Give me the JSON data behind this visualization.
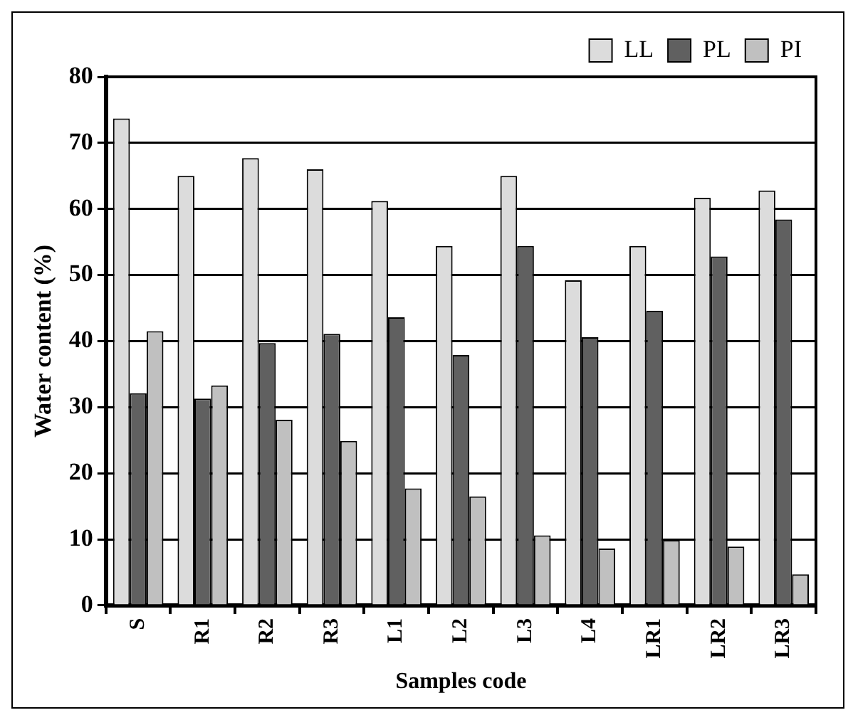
{
  "chart_data": {
    "type": "bar",
    "xlabel": "Samples code",
    "ylabel": "Water content (%)",
    "categories": [
      "S",
      "R1",
      "R2",
      "R3",
      "L1",
      "L2",
      "L3",
      "L4",
      "LR1",
      "LR2",
      "LR3"
    ],
    "series": [
      {
        "name": "LL",
        "color": "#dcdcdc",
        "values": [
          73.7,
          65,
          67.7,
          66,
          61.2,
          54.4,
          65,
          49.2,
          54.4,
          61.7,
          62.8
        ]
      },
      {
        "name": "PL",
        "color": "#606060",
        "values": [
          32.1,
          31.3,
          39.7,
          41.1,
          43.6,
          37.9,
          54.4,
          40.6,
          44.6,
          52.8,
          58.4
        ]
      },
      {
        "name": "PI",
        "color": "#c0c0c0",
        "values": [
          41.5,
          33.3,
          28.1,
          24.9,
          17.7,
          16.5,
          10.6,
          8.6,
          9.9,
          8.9,
          4.7
        ]
      }
    ],
    "ylim": [
      0,
      80
    ],
    "yticks": [
      0,
      10,
      20,
      30,
      40,
      50,
      60,
      70,
      80
    ],
    "grid": "y",
    "legend": "top right"
  }
}
